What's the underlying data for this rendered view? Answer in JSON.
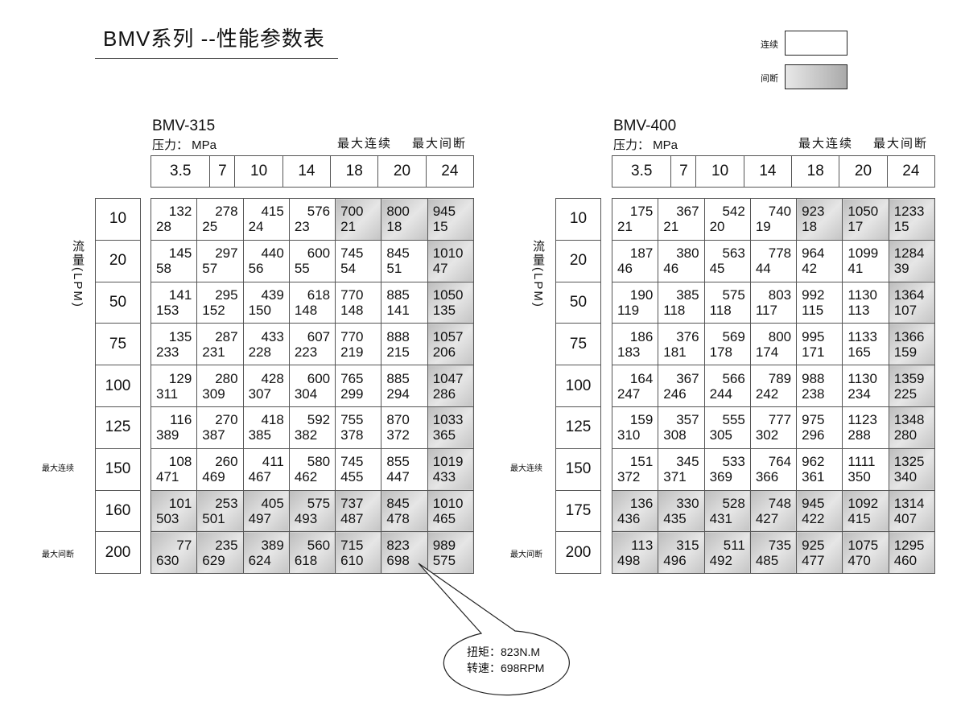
{
  "title": "BMV系列 --性能参数表",
  "legend": {
    "continuous": "连续",
    "intermittent": "间断",
    "colors": {
      "continuous": "#ffffff",
      "intermittent": "#c8c8c8"
    }
  },
  "y_axis_label": "流量(LPM)",
  "max_continuous": "最大连续",
  "max_intermittent": "最大间断",
  "tables": [
    {
      "model": "BMV-315",
      "pressure_label": "压力：  MPa",
      "pressures": [
        "3.5",
        "7",
        "10",
        "14",
        "18",
        "20",
        "24"
      ],
      "flows": [
        "10",
        "20",
        "50",
        "75",
        "100",
        "125",
        "150",
        "160",
        "200"
      ],
      "rows": [
        [
          [
            "132",
            "28"
          ],
          [
            "278",
            "25"
          ],
          [
            "415",
            "24"
          ],
          [
            "576",
            "23"
          ],
          [
            "700",
            "21"
          ],
          [
            "800",
            "18"
          ],
          [
            "945",
            "15"
          ]
        ],
        [
          [
            "145",
            "58"
          ],
          [
            "297",
            "57"
          ],
          [
            "440",
            "56"
          ],
          [
            "600",
            "55"
          ],
          [
            "745",
            "54"
          ],
          [
            "845",
            "51"
          ],
          [
            "1010",
            "47"
          ]
        ],
        [
          [
            "141",
            "153"
          ],
          [
            "295",
            "152"
          ],
          [
            "439",
            "150"
          ],
          [
            "618",
            "148"
          ],
          [
            "770",
            "148"
          ],
          [
            "885",
            "141"
          ],
          [
            "1050",
            "135"
          ]
        ],
        [
          [
            "135",
            "233"
          ],
          [
            "287",
            "231"
          ],
          [
            "433",
            "228"
          ],
          [
            "607",
            "223"
          ],
          [
            "770",
            "219"
          ],
          [
            "888",
            "215"
          ],
          [
            "1057",
            "206"
          ]
        ],
        [
          [
            "129",
            "311"
          ],
          [
            "280",
            "309"
          ],
          [
            "428",
            "307"
          ],
          [
            "600",
            "304"
          ],
          [
            "765",
            "299"
          ],
          [
            "885",
            "294"
          ],
          [
            "1047",
            "286"
          ]
        ],
        [
          [
            "116",
            "389"
          ],
          [
            "270",
            "387"
          ],
          [
            "418",
            "385"
          ],
          [
            "592",
            "382"
          ],
          [
            "755",
            "378"
          ],
          [
            "870",
            "372"
          ],
          [
            "1033",
            "365"
          ]
        ],
        [
          [
            "108",
            "471"
          ],
          [
            "260",
            "469"
          ],
          [
            "411",
            "467"
          ],
          [
            "580",
            "462"
          ],
          [
            "745",
            "455"
          ],
          [
            "855",
            "447"
          ],
          [
            "1019",
            "433"
          ]
        ],
        [
          [
            "101",
            "503"
          ],
          [
            "253",
            "501"
          ],
          [
            "405",
            "497"
          ],
          [
            "575",
            "493"
          ],
          [
            "737",
            "487"
          ],
          [
            "845",
            "478"
          ],
          [
            "1010",
            "465"
          ]
        ],
        [
          [
            "77",
            "630"
          ],
          [
            "235",
            "629"
          ],
          [
            "389",
            "624"
          ],
          [
            "560",
            "618"
          ],
          [
            "715",
            "610"
          ],
          [
            "823",
            "698"
          ],
          [
            "989",
            "575"
          ]
        ]
      ]
    },
    {
      "model": "BMV-400",
      "pressure_label": "压力：  MPa",
      "pressures": [
        "3.5",
        "7",
        "10",
        "14",
        "18",
        "20",
        "24"
      ],
      "flows": [
        "10",
        "20",
        "50",
        "75",
        "100",
        "125",
        "150",
        "175",
        "200"
      ],
      "rows": [
        [
          [
            "175",
            "21"
          ],
          [
            "367",
            "21"
          ],
          [
            "542",
            "20"
          ],
          [
            "740",
            "19"
          ],
          [
            "923",
            "18"
          ],
          [
            "1050",
            "17"
          ],
          [
            "1233",
            "15"
          ]
        ],
        [
          [
            "187",
            "46"
          ],
          [
            "380",
            "46"
          ],
          [
            "563",
            "45"
          ],
          [
            "778",
            "44"
          ],
          [
            "964",
            "42"
          ],
          [
            "1099",
            "41"
          ],
          [
            "1284",
            "39"
          ]
        ],
        [
          [
            "190",
            "119"
          ],
          [
            "385",
            "118"
          ],
          [
            "575",
            "118"
          ],
          [
            "803",
            "117"
          ],
          [
            "992",
            "115"
          ],
          [
            "1130",
            "113"
          ],
          [
            "1364",
            "107"
          ]
        ],
        [
          [
            "186",
            "183"
          ],
          [
            "376",
            "181"
          ],
          [
            "569",
            "178"
          ],
          [
            "800",
            "174"
          ],
          [
            "995",
            "171"
          ],
          [
            "1133",
            "165"
          ],
          [
            "1366",
            "159"
          ]
        ],
        [
          [
            "164",
            "247"
          ],
          [
            "367",
            "246"
          ],
          [
            "566",
            "244"
          ],
          [
            "789",
            "242"
          ],
          [
            "988",
            "238"
          ],
          [
            "1130",
            "234"
          ],
          [
            "1359",
            "225"
          ]
        ],
        [
          [
            "159",
            "310"
          ],
          [
            "357",
            "308"
          ],
          [
            "555",
            "305"
          ],
          [
            "777",
            "302"
          ],
          [
            "975",
            "296"
          ],
          [
            "1123",
            "288"
          ],
          [
            "1348",
            "280"
          ]
        ],
        [
          [
            "151",
            "372"
          ],
          [
            "345",
            "371"
          ],
          [
            "533",
            "369"
          ],
          [
            "764",
            "366"
          ],
          [
            "962",
            "361"
          ],
          [
            "1111",
            "350"
          ],
          [
            "1325",
            "340"
          ]
        ],
        [
          [
            "136",
            "436"
          ],
          [
            "330",
            "435"
          ],
          [
            "528",
            "431"
          ],
          [
            "748",
            "427"
          ],
          [
            "945",
            "422"
          ],
          [
            "1092",
            "415"
          ],
          [
            "1314",
            "407"
          ]
        ],
        [
          [
            "113",
            "498"
          ],
          [
            "315",
            "496"
          ],
          [
            "511",
            "492"
          ],
          [
            "735",
            "485"
          ],
          [
            "925",
            "477"
          ],
          [
            "1075",
            "470"
          ],
          [
            "1295",
            "460"
          ]
        ]
      ]
    }
  ],
  "callout": {
    "torque": "扭矩：823N.M",
    "speed": "转速：698RPM"
  }
}
